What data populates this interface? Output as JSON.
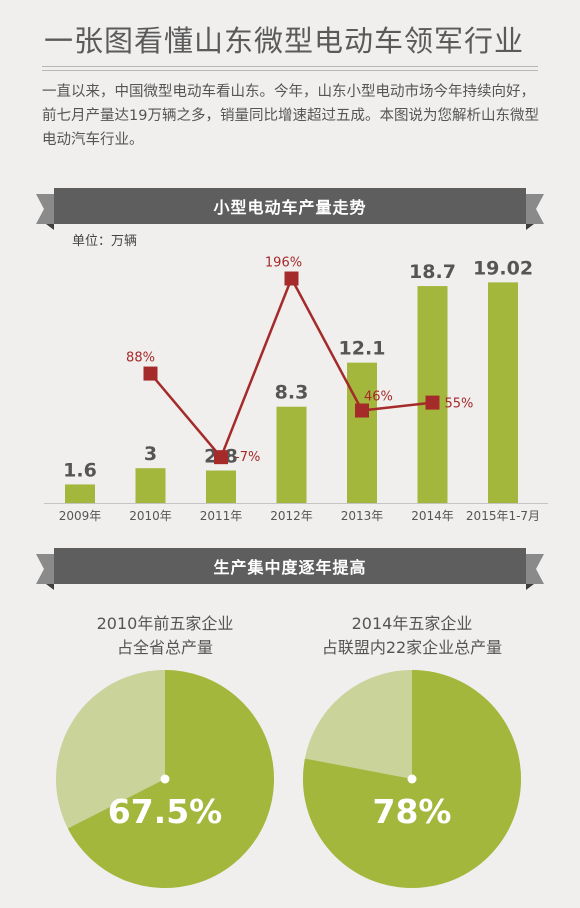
{
  "header": {
    "title": "一张图看懂山东微型电动车领军行业",
    "intro": "一直以来，中国微型电动车看山东。今年，山东小型电动市场今年持续向好，前七月产量达19万辆之多，销量同比增速超过五成。本图说为您解析山东微型电动汽车行业。"
  },
  "section1": {
    "title": "小型电动车产量走势"
  },
  "section2": {
    "title": "生产集中度逐年提高"
  },
  "chart_data": [
    {
      "type": "bar",
      "title": "小型电动车产量走势",
      "unit_label": "单位：万辆",
      "categories": [
        "2009年",
        "2010年",
        "2011年",
        "2012年",
        "2013年",
        "2014年",
        "2015年1-7月"
      ],
      "values": [
        1.6,
        3,
        2.8,
        8.3,
        12.1,
        18.7,
        19.02
      ],
      "value_labels": [
        "1.6",
        "3",
        "2.8",
        "8.3",
        "12.1",
        "18.7",
        "19.02"
      ],
      "growth_series": {
        "type": "line",
        "values": [
          null,
          88,
          -7,
          196,
          46,
          55,
          null
        ],
        "labels": [
          "",
          "88%",
          "-7%",
          "196%",
          "46%",
          "55%",
          ""
        ]
      },
      "colors": {
        "bar": "#a3b73c",
        "line": "#a52a2a"
      }
    },
    {
      "type": "pie",
      "caption_line1": "2010年前五家企业",
      "caption_line2": "占全省总产量",
      "value": 67.5,
      "label": "67.5%",
      "colors": {
        "main": "#a3b73c",
        "rest": "#c9d39a"
      }
    },
    {
      "type": "pie",
      "caption_line1": "2014年五家企业",
      "caption_line2": "占联盟内22家企业总产量",
      "value": 78,
      "label": "78%",
      "colors": {
        "main": "#a3b73c",
        "rest": "#c9d39a"
      }
    }
  ]
}
